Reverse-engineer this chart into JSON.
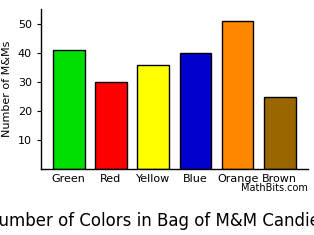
{
  "categories": [
    "Green",
    "Red",
    "Yellow",
    "Blue",
    "Orange",
    "Brown"
  ],
  "values": [
    41,
    30,
    36,
    40,
    51,
    25
  ],
  "bar_colors": [
    "#00dd00",
    "#ff0000",
    "#ffff00",
    "#0000cc",
    "#ff8800",
    "#996600"
  ],
  "bar_edgecolors": [
    "#000000",
    "#000000",
    "#000000",
    "#000000",
    "#000000",
    "#000000"
  ],
  "title": "Number of Colors in Bag of M&M Candies",
  "ylabel": "Number of M&Ms",
  "ylim": [
    0,
    55
  ],
  "yticks": [
    10,
    20,
    30,
    40,
    50
  ],
  "title_fontsize": 12,
  "ylabel_fontsize": 8,
  "xlabel_fontsize": 8,
  "tick_fontsize": 8,
  "watermark": "MathBits.com",
  "background_color": "#ffffff"
}
